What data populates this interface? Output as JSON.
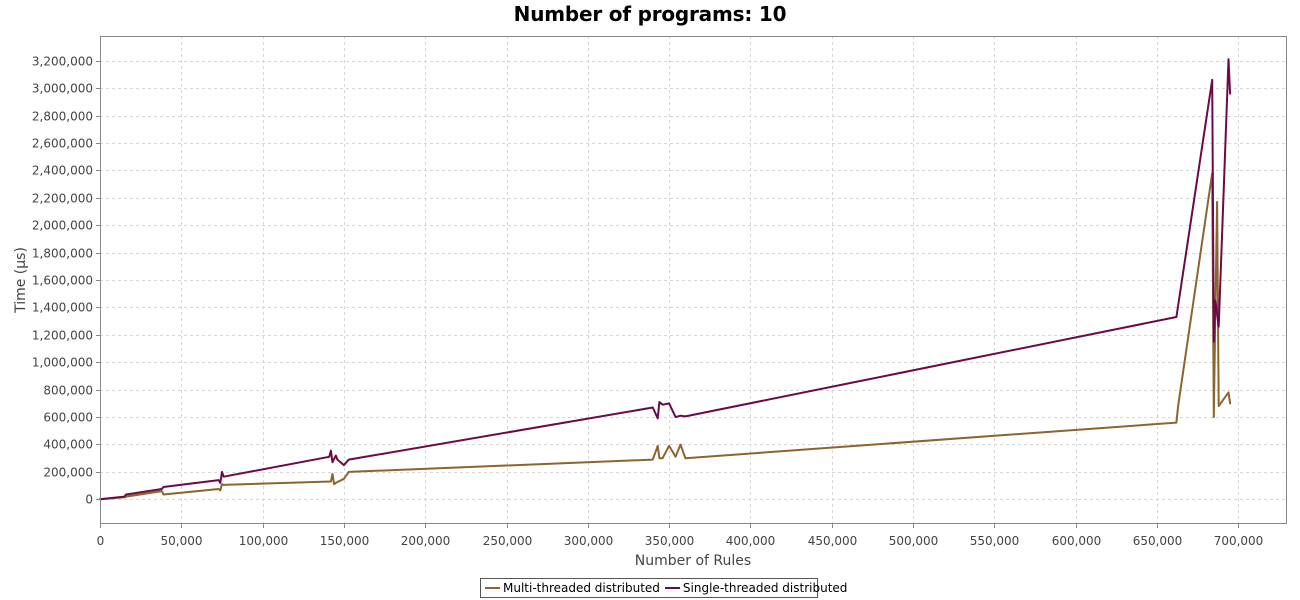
{
  "chart_data": {
    "type": "line",
    "title": "Number of programs: 10",
    "xlabel": "Number of Rules",
    "ylabel": "Time (µs)",
    "xlim": [
      0,
      730000
    ],
    "ylim": [
      -180000,
      3380000
    ],
    "x_ticks": [
      0,
      50000,
      100000,
      150000,
      200000,
      250000,
      300000,
      350000,
      400000,
      450000,
      500000,
      550000,
      600000,
      650000,
      700000
    ],
    "x_tick_labels": [
      "0",
      "50,000",
      "100,000",
      "150,000",
      "200,000",
      "250,000",
      "300,000",
      "350,000",
      "400,000",
      "450,000",
      "500,000",
      "550,000",
      "600,000",
      "650,000",
      "700,000"
    ],
    "y_ticks": [
      0,
      200000,
      400000,
      600000,
      800000,
      1000000,
      1200000,
      1400000,
      1600000,
      1800000,
      2000000,
      2200000,
      2400000,
      2600000,
      2800000,
      3000000,
      3200000
    ],
    "y_tick_labels": [
      "0",
      "200,000",
      "400,000",
      "600,000",
      "800,000",
      "1,000,000",
      "1,200,000",
      "1,400,000",
      "1,600,000",
      "1,800,000",
      "2,000,000",
      "2,200,000",
      "2,400,000",
      "2,600,000",
      "2,800,000",
      "3,000,000",
      "3,200,000"
    ],
    "grid": true,
    "legend_position": "bottom-center",
    "series": [
      {
        "name": "Multi-threaded distributed",
        "color": "#8b6430",
        "points": [
          [
            0,
            0
          ],
          [
            15000,
            15000
          ],
          [
            16000,
            20000
          ],
          [
            38000,
            60000
          ],
          [
            39000,
            35000
          ],
          [
            73000,
            75000
          ],
          [
            74000,
            65000
          ],
          [
            75000,
            110000
          ],
          [
            76000,
            105000
          ],
          [
            142000,
            130000
          ],
          [
            143000,
            185000
          ],
          [
            144000,
            110000
          ],
          [
            145000,
            120000
          ],
          [
            150000,
            150000
          ],
          [
            153000,
            200000
          ],
          [
            340000,
            290000
          ],
          [
            343000,
            390000
          ],
          [
            344000,
            300000
          ],
          [
            346000,
            300000
          ],
          [
            350000,
            390000
          ],
          [
            354000,
            310000
          ],
          [
            357000,
            400000
          ],
          [
            360000,
            300000
          ],
          [
            662000,
            560000
          ],
          [
            663000,
            680000
          ],
          [
            684000,
            2380000
          ],
          [
            685000,
            600000
          ],
          [
            686000,
            1450000
          ],
          [
            687000,
            2170000
          ],
          [
            688000,
            680000
          ],
          [
            694000,
            780000
          ],
          [
            695000,
            700000
          ]
        ]
      },
      {
        "name": "Single-threaded distributed",
        "color": "#6b0a47",
        "points": [
          [
            0,
            0
          ],
          [
            15000,
            20000
          ],
          [
            16000,
            35000
          ],
          [
            38000,
            75000
          ],
          [
            39000,
            90000
          ],
          [
            73000,
            140000
          ],
          [
            74000,
            120000
          ],
          [
            75000,
            200000
          ],
          [
            76000,
            165000
          ],
          [
            141000,
            310000
          ],
          [
            142000,
            355000
          ],
          [
            143000,
            270000
          ],
          [
            145000,
            320000
          ],
          [
            146000,
            290000
          ],
          [
            150000,
            250000
          ],
          [
            153000,
            290000
          ],
          [
            340000,
            670000
          ],
          [
            343000,
            590000
          ],
          [
            344000,
            710000
          ],
          [
            346000,
            690000
          ],
          [
            350000,
            700000
          ],
          [
            354000,
            600000
          ],
          [
            357000,
            610000
          ],
          [
            360000,
            605000
          ],
          [
            662000,
            1330000
          ],
          [
            684000,
            3060000
          ],
          [
            685000,
            1150000
          ],
          [
            686000,
            1450000
          ],
          [
            688000,
            1260000
          ],
          [
            694000,
            3210000
          ],
          [
            695000,
            2960000
          ]
        ]
      }
    ]
  }
}
